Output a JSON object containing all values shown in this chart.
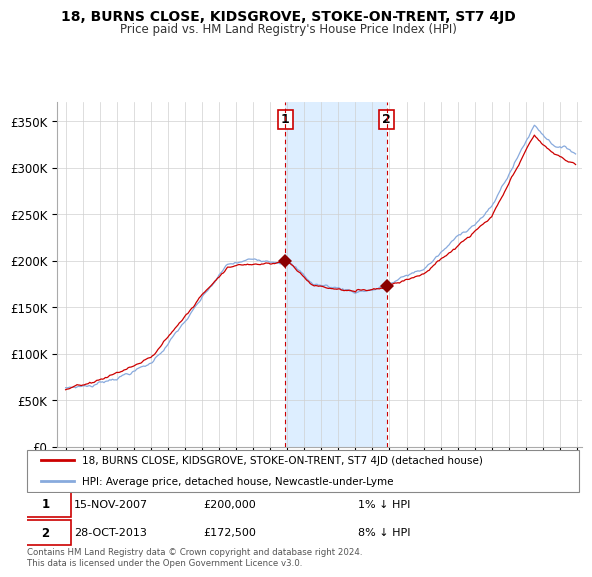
{
  "title": "18, BURNS CLOSE, KIDSGROVE, STOKE-ON-TRENT, ST7 4JD",
  "subtitle": "Price paid vs. HM Land Registry's House Price Index (HPI)",
  "legend_line1": "18, BURNS CLOSE, KIDSGROVE, STOKE-ON-TRENT, ST7 4JD (detached house)",
  "legend_line2": "HPI: Average price, detached house, Newcastle-under-Lyme",
  "annotation1_date": "15-NOV-2007",
  "annotation1_price": "£200,000",
  "annotation1_hpi": "1% ↓ HPI",
  "annotation2_date": "28-OCT-2013",
  "annotation2_price": "£172,500",
  "annotation2_hpi": "8% ↓ HPI",
  "footer": "Contains HM Land Registry data © Crown copyright and database right 2024.\nThis data is licensed under the Open Government Licence v3.0.",
  "sale1_year": 2007.88,
  "sale1_value": 200000,
  "sale2_year": 2013.83,
  "sale2_value": 172500,
  "property_color": "#cc0000",
  "hpi_color": "#88aadd",
  "shading_color": "#ddeeff",
  "ylim_min": 0,
  "ylim_max": 370000,
  "yticks": [
    0,
    50000,
    100000,
    150000,
    200000,
    250000,
    300000,
    350000
  ],
  "ytick_labels": [
    "£0",
    "£50K",
    "£100K",
    "£150K",
    "£200K",
    "£250K",
    "£300K",
    "£350K"
  ]
}
